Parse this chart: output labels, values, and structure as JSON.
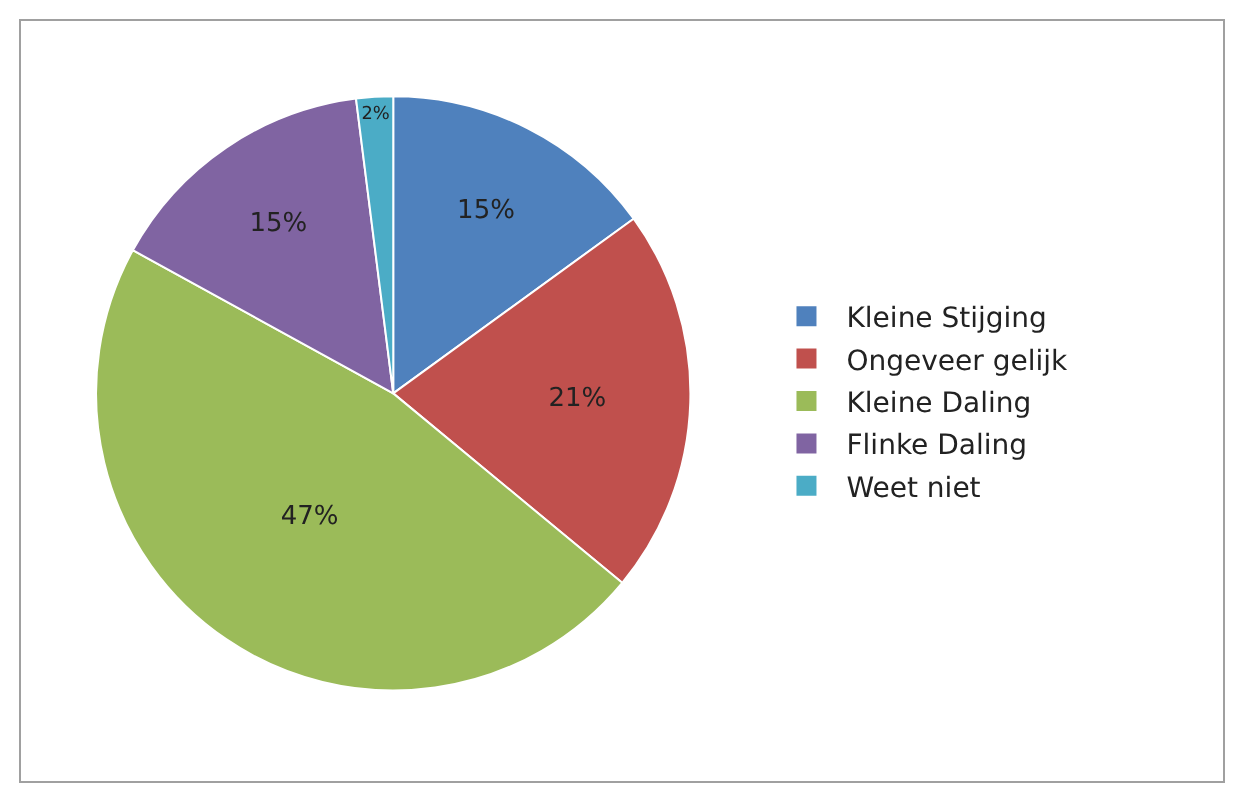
{
  "chart_data": {
    "type": "pie",
    "categories": [
      "Kleine Stijging",
      "Ongeveer gelijk",
      "Kleine Daling",
      "Flinke Daling",
      "Weet niet"
    ],
    "values": [
      15,
      21,
      47,
      15,
      2
    ],
    "colors": [
      "#4f81bd",
      "#c0504d",
      "#9bbb59",
      "#8064a2",
      "#4bacc6"
    ],
    "value_labels": [
      "15%",
      "21%",
      "47%",
      "15%",
      "2%"
    ],
    "legend": "right"
  }
}
